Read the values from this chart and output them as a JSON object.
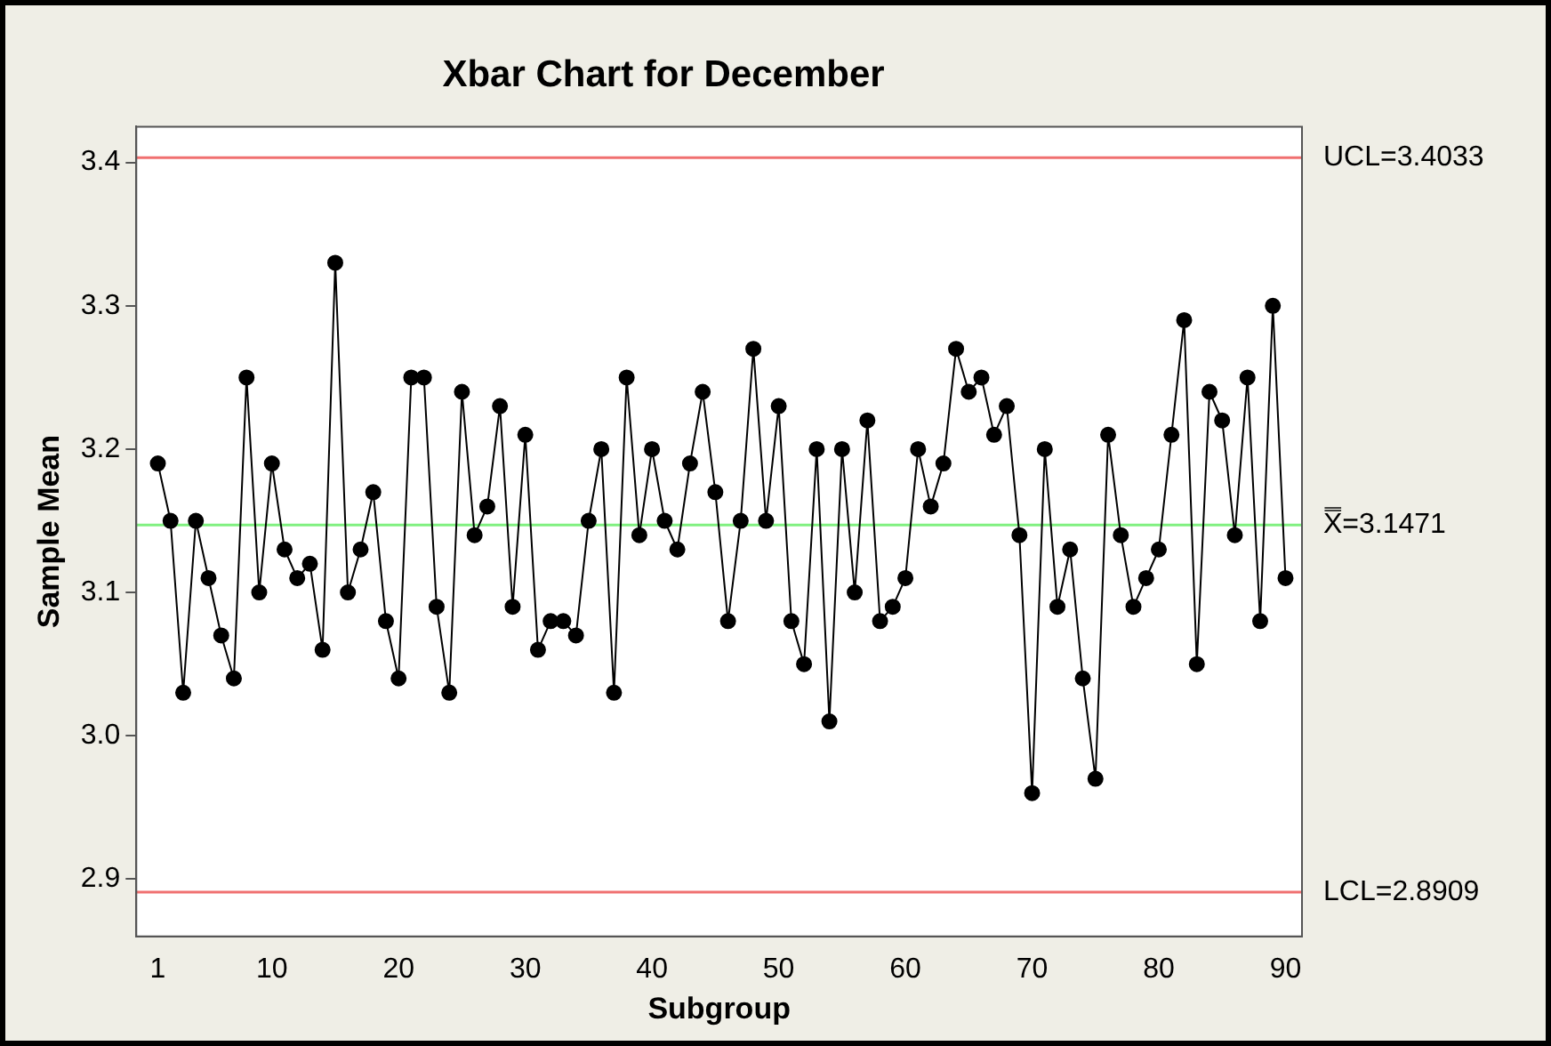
{
  "chart_data": {
    "type": "line",
    "title": "Xbar Chart for December",
    "xlabel": "Subgroup",
    "ylabel": "Sample Mean",
    "x": [
      1,
      2,
      3,
      4,
      5,
      6,
      7,
      8,
      9,
      10,
      11,
      12,
      13,
      14,
      15,
      16,
      17,
      18,
      19,
      20,
      21,
      22,
      23,
      24,
      25,
      26,
      27,
      28,
      29,
      30,
      31,
      32,
      33,
      34,
      35,
      36,
      37,
      38,
      39,
      40,
      41,
      42,
      43,
      44,
      45,
      46,
      47,
      48,
      49,
      50,
      51,
      52,
      53,
      54,
      55,
      56,
      57,
      58,
      59,
      60,
      61,
      62,
      63,
      64,
      65,
      66,
      67,
      68,
      69,
      70,
      71,
      72,
      73,
      74,
      75,
      76,
      77,
      78,
      79,
      80,
      81,
      82,
      83,
      84,
      85,
      86,
      87,
      88,
      89,
      90
    ],
    "series": [
      {
        "color": "#000000",
        "values": [
          3.19,
          3.15,
          3.03,
          3.15,
          3.11,
          3.07,
          3.04,
          3.25,
          3.1,
          3.19,
          3.13,
          3.11,
          3.12,
          3.06,
          3.33,
          3.1,
          3.13,
          3.17,
          3.08,
          3.04,
          3.25,
          3.25,
          3.09,
          3.03,
          3.24,
          3.14,
          3.16,
          3.23,
          3.09,
          3.21,
          3.06,
          3.08,
          3.08,
          3.07,
          3.15,
          3.2,
          3.03,
          3.25,
          3.14,
          3.2,
          3.15,
          3.13,
          3.19,
          3.24,
          3.17,
          3.08,
          3.15,
          3.27,
          3.15,
          3.23,
          3.08,
          3.05,
          3.2,
          3.01,
          3.2,
          3.1,
          3.22,
          3.08,
          3.09,
          3.11,
          3.2,
          3.16,
          3.19,
          3.27,
          3.24,
          3.25,
          3.21,
          3.23,
          3.14,
          2.96,
          3.2,
          3.09,
          3.13,
          3.04,
          2.97,
          3.21,
          3.14,
          3.09,
          3.11,
          3.13,
          3.21,
          3.29,
          3.05,
          3.24,
          3.22,
          3.14,
          3.25,
          3.08,
          3.3,
          3.11
        ]
      }
    ],
    "xlim": [
      -0.7,
      91.3
    ],
    "xticks": [
      1,
      10,
      20,
      30,
      40,
      50,
      60,
      70,
      80,
      90
    ],
    "ylim": [
      2.86,
      3.425
    ],
    "yticks": [
      2.9,
      {
        "value": 3,
        "label": "3.0"
      },
      3.1,
      3.2,
      3.3,
      3.4
    ],
    "ref_lines": [
      {
        "axis": "y",
        "value": 3.4033,
        "label": "UCL=3.4033",
        "color": "#f07070"
      },
      {
        "axis": "y",
        "value": 3.1471,
        "label": "X̿=3.1471",
        "color": "#80f080"
      },
      {
        "axis": "y",
        "value": 2.8909,
        "label": "LCL=2.8909",
        "color": "#f07070"
      }
    ],
    "grid": false,
    "legend": false,
    "marker": "circle",
    "line_style": "solid"
  }
}
